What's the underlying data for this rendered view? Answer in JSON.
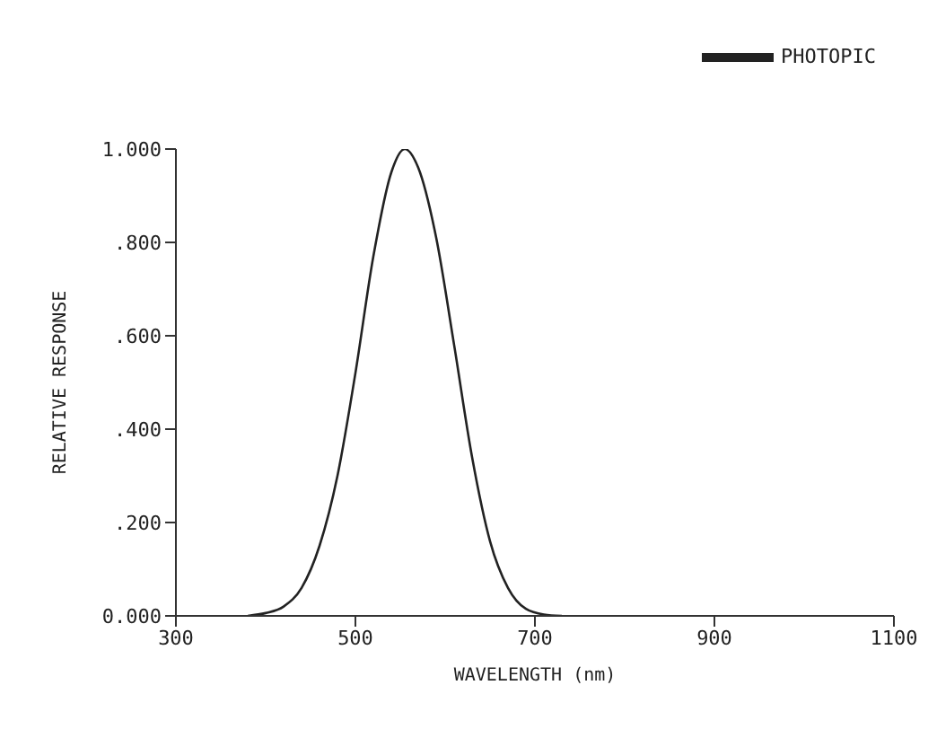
{
  "chart_data": {
    "type": "line",
    "xlabel": "WAVELENGTH (nm)",
    "ylabel": "RELATIVE RESPONSE",
    "x": [
      380,
      400,
      420,
      440,
      460,
      480,
      500,
      520,
      540,
      555,
      570,
      590,
      610,
      630,
      650,
      670,
      690,
      710,
      730
    ],
    "series": [
      {
        "name": "PHOTOPIC",
        "color": "#222222",
        "values": [
          0,
          0.006,
          0.02,
          0.06,
          0.15,
          0.3,
          0.52,
          0.77,
          0.95,
          1.0,
          0.96,
          0.81,
          0.58,
          0.34,
          0.16,
          0.06,
          0.015,
          0.003,
          0
        ]
      }
    ],
    "xlim": [
      300,
      1100
    ],
    "xticks": [
      300,
      500,
      700,
      900,
      1100
    ],
    "ylim": [
      0,
      1
    ],
    "yticks": [
      {
        "value": 0,
        "label": "0.000"
      },
      {
        "value": 0.2,
        "label": ".200"
      },
      {
        "value": 0.4,
        "label": ".400"
      },
      {
        "value": 0.6,
        "label": ".600"
      },
      {
        "value": 0.8,
        "label": ".800"
      },
      {
        "value": 1,
        "label": "1.000"
      }
    ],
    "legend": "top right",
    "grid": false,
    "marker": "none",
    "line_style": "solid"
  }
}
